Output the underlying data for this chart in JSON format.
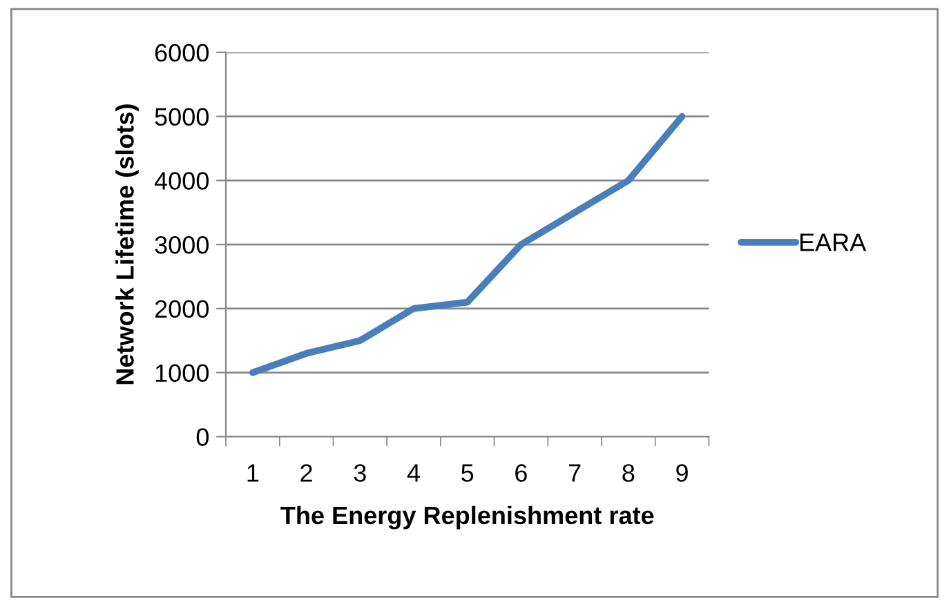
{
  "chart_data": {
    "type": "line",
    "xlabel": "The Energy Replenishment rate",
    "ylabel": "Network Lifetime (slots)",
    "categories": [
      "1",
      "2",
      "3",
      "4",
      "5",
      "6",
      "7",
      "8",
      "9"
    ],
    "series": [
      {
        "name": "EARA",
        "color": "#4a7ebb",
        "values": [
          1000,
          1300,
          1500,
          2000,
          2100,
          3000,
          3500,
          4000,
          5000
        ]
      }
    ],
    "ylim": [
      0,
      6000
    ],
    "yticks": [
      0,
      1000,
      2000,
      3000,
      4000,
      5000,
      6000
    ],
    "grid": "y",
    "legend": "right",
    "marker": "none",
    "line_style": "solid"
  }
}
